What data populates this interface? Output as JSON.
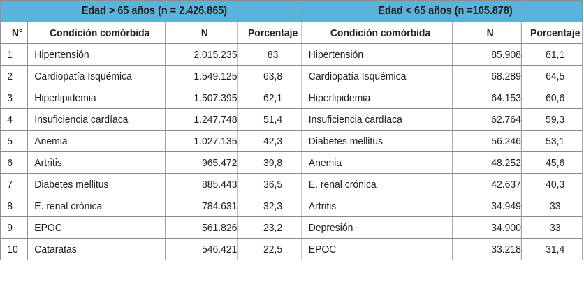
{
  "table": {
    "group_headers": [
      "Edad > 65 años (n = 2.426.865)",
      "Edad < 65 años (n =105.878)"
    ],
    "column_headers": [
      "N°",
      "Condición comórbida",
      "N",
      "Porcentaje",
      "Condición comórbida",
      "N",
      "Porcentaje"
    ],
    "rows": [
      [
        "1",
        "Hipertensión",
        "2.015.235",
        "83",
        "Hipertensión",
        "85.908",
        "81,1"
      ],
      [
        "2",
        "Cardiopatía Isquémica",
        "1.549.125",
        "63,8",
        "Cardiopatía Isquémica",
        "68.289",
        "64,5"
      ],
      [
        "3",
        "Hiperlipidemia",
        "1.507.395",
        "62,1",
        "Hiperlipidemia",
        "64.153",
        "60,6"
      ],
      [
        "4",
        "Insuficiencia cardíaca",
        "1.247.748",
        "51,4",
        "Insuficiencia cardíaca",
        "62.764",
        "59,3"
      ],
      [
        "5",
        "Anemia",
        "1.027.135",
        "42,3",
        "Diabetes mellitus",
        "56.246",
        "53,1"
      ],
      [
        "6",
        "Artritis",
        "965.472",
        "39,8",
        "Anemia",
        "48.252",
        "45,6"
      ],
      [
        "7",
        "Diabetes mellitus",
        "885.443",
        "36,5",
        "E. renal crónica",
        "42.637",
        "40,3"
      ],
      [
        "8",
        "E. renal crónica",
        "784.631",
        "32,3",
        "Artritis",
        "34.949",
        "33"
      ],
      [
        "9",
        "EPOC",
        "561.826",
        "23,2",
        "Depresión",
        "34.900",
        "33"
      ],
      [
        "10",
        "Cataratas",
        "546.421",
        "22,5",
        "EPOC",
        "33.218",
        "31,4"
      ]
    ]
  },
  "colors": {
    "header_fill": "#5bb3db",
    "grid_line": "#8c8c8c"
  }
}
